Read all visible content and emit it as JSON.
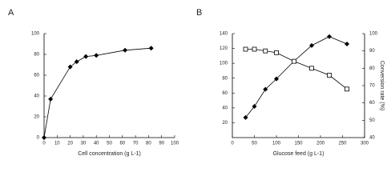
{
  "chart_data": [
    {
      "type": "line",
      "panel": "A",
      "xlabel": "Cell concentration (g L-1)",
      "x": [
        0,
        5,
        20,
        25,
        32,
        40,
        62,
        82
      ],
      "series": [
        {
          "color": "#000000",
          "marker": "diamond-filled",
          "values": [
            0,
            37,
            68,
            73,
            78,
            79,
            84,
            86
          ]
        }
      ],
      "xlim": [
        0,
        100
      ],
      "xticks": [
        0,
        10,
        20,
        30,
        40,
        50,
        60,
        70,
        80,
        90,
        100
      ],
      "ylim": [
        0,
        100
      ],
      "yticks": [
        0,
        20,
        40,
        60,
        80,
        100
      ]
    },
    {
      "type": "line",
      "panel": "B",
      "xlabel": "Glucose feed (g L-1)",
      "y2label": "Conversion rate (%)",
      "x": [
        30,
        50,
        75,
        100,
        140,
        180,
        220,
        260
      ],
      "series": [
        {
          "color": "#000000",
          "marker": "diamond-filled",
          "values": [
            27,
            42,
            65,
            79,
            103,
            124,
            136,
            126
          ]
        },
        {
          "color": "#000000",
          "marker": "square-open",
          "axis": "y2",
          "values": [
            91,
            91,
            90,
            89,
            84,
            80,
            76,
            68
          ]
        }
      ],
      "xlim": [
        0,
        300
      ],
      "xticks": [
        0,
        50,
        100,
        150,
        200,
        250,
        300
      ],
      "ylim": [
        0,
        140
      ],
      "yticks": [
        20,
        40,
        60,
        80,
        100,
        120,
        140
      ],
      "y2lim": [
        40,
        100
      ],
      "y2ticks": [
        40,
        50,
        60,
        70,
        80,
        90,
        100
      ]
    }
  ]
}
